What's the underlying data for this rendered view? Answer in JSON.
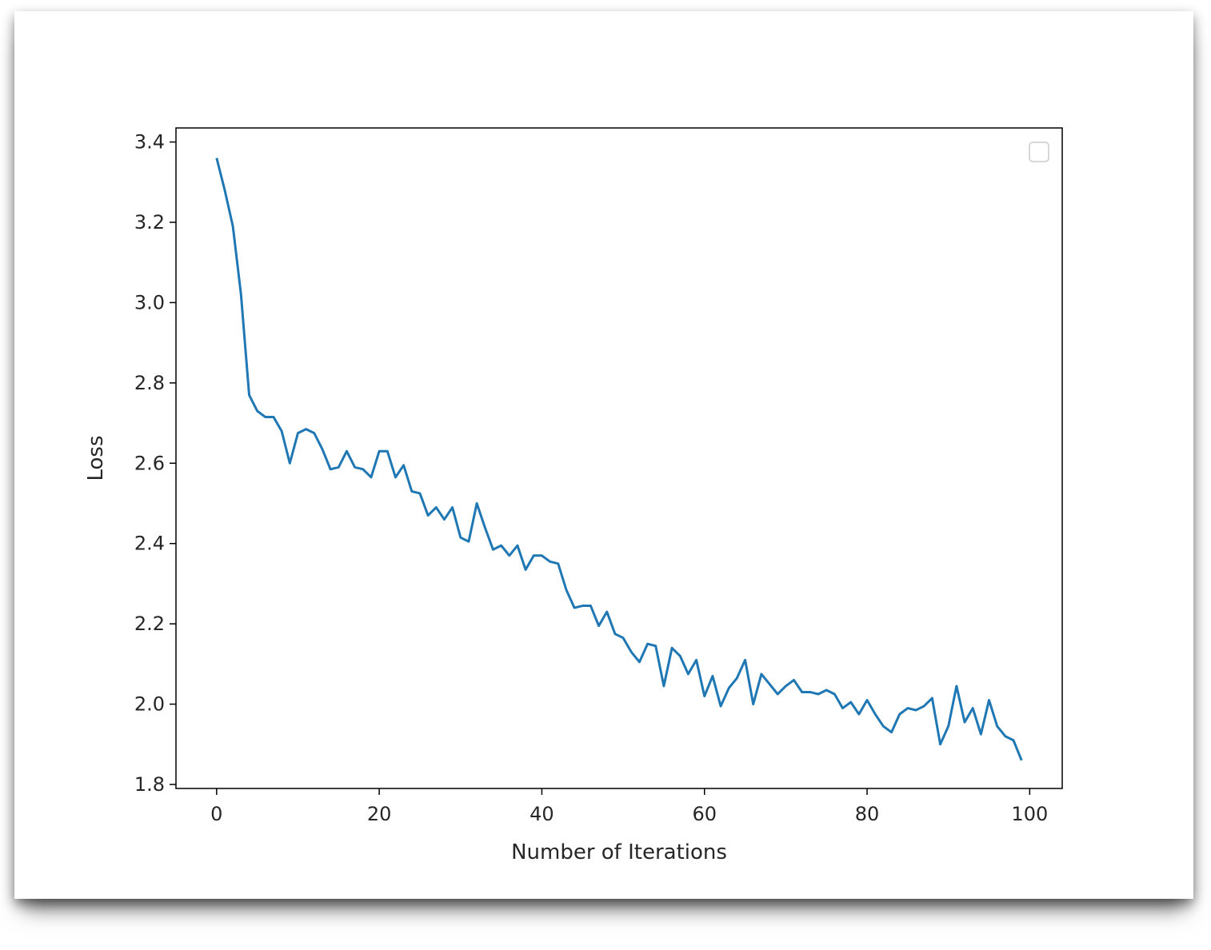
{
  "chart_data": {
    "type": "line",
    "title": "",
    "xlabel": "Number of Iterations",
    "ylabel": "Loss",
    "xlim": [
      -5,
      104
    ],
    "ylim": [
      1.79,
      3.435
    ],
    "x_ticks": [
      0,
      20,
      40,
      60,
      80,
      100
    ],
    "y_ticks": [
      1.8,
      2.0,
      2.2,
      2.4,
      2.6,
      2.8,
      3.0,
      3.2,
      3.4
    ],
    "grid": false,
    "legend": {
      "placement": "top-right",
      "entries": []
    },
    "series": [
      {
        "color": "#1f77b4",
        "x": [
          0,
          1,
          2,
          3,
          4,
          5,
          6,
          7,
          8,
          9,
          10,
          11,
          12,
          13,
          14,
          15,
          16,
          17,
          18,
          19,
          20,
          21,
          22,
          23,
          24,
          25,
          26,
          27,
          28,
          29,
          30,
          31,
          32,
          33,
          34,
          35,
          36,
          37,
          38,
          39,
          40,
          41,
          42,
          43,
          44,
          45,
          46,
          47,
          48,
          49,
          50,
          51,
          52,
          53,
          54,
          55,
          56,
          57,
          58,
          59,
          60,
          61,
          62,
          63,
          64,
          65,
          66,
          67,
          68,
          69,
          70,
          71,
          72,
          73,
          74,
          75,
          76,
          77,
          78,
          79,
          80,
          81,
          82,
          83,
          84,
          85,
          86,
          87,
          88,
          89,
          90,
          91,
          92,
          93,
          94,
          95,
          96,
          97,
          98,
          99
        ],
        "values": [
          3.36,
          3.28,
          3.19,
          3.02,
          2.77,
          2.73,
          2.715,
          2.715,
          2.68,
          2.6,
          2.675,
          2.685,
          2.675,
          2.635,
          2.585,
          2.59,
          2.63,
          2.59,
          2.585,
          2.565,
          2.63,
          2.63,
          2.565,
          2.595,
          2.53,
          2.525,
          2.47,
          2.49,
          2.46,
          2.49,
          2.415,
          2.405,
          2.5,
          2.44,
          2.385,
          2.395,
          2.37,
          2.395,
          2.335,
          2.37,
          2.37,
          2.355,
          2.35,
          2.285,
          2.24,
          2.245,
          2.245,
          2.195,
          2.23,
          2.175,
          2.165,
          2.13,
          2.105,
          2.15,
          2.145,
          2.045,
          2.14,
          2.12,
          2.075,
          2.11,
          2.02,
          2.07,
          1.995,
          2.04,
          2.065,
          2.11,
          2.0,
          2.075,
          2.05,
          2.025,
          2.045,
          2.06,
          2.03,
          2.03,
          2.025,
          2.035,
          2.025,
          1.99,
          2.005,
          1.975,
          2.01,
          1.975,
          1.945,
          1.93,
          1.975,
          1.99,
          1.985,
          1.995,
          2.015,
          1.9,
          1.945,
          2.045,
          1.955,
          1.99,
          1.925,
          2.01,
          1.945,
          1.92,
          1.91,
          1.86
        ]
      }
    ]
  }
}
